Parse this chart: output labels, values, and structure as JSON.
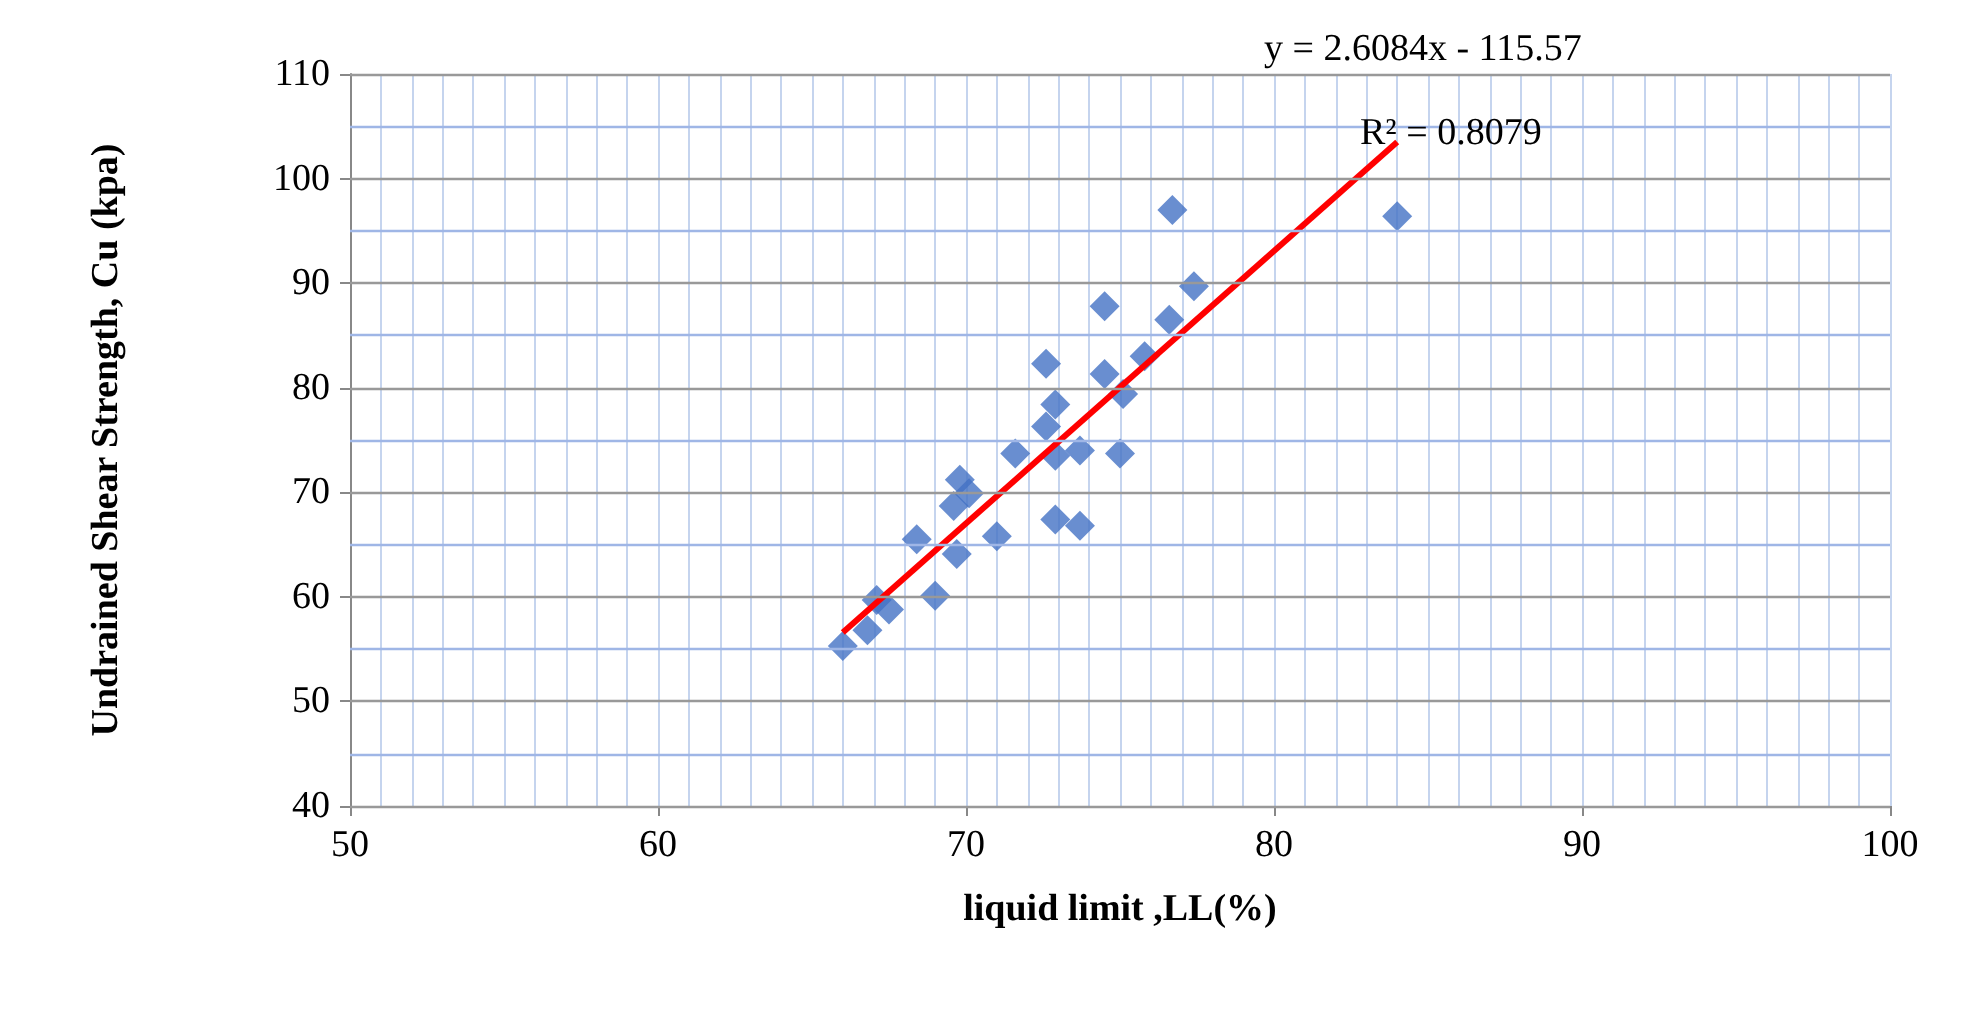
{
  "chart_data": {
    "type": "scatter",
    "xlabel": "liquid limit ,LL(%)",
    "ylabel": "Undrained Shear Strength, Cu (kpa)",
    "xlim": [
      50,
      100
    ],
    "xticks": [
      50,
      60,
      70,
      80,
      90,
      100
    ],
    "ylim": [
      40,
      110
    ],
    "yticks": [
      40,
      {
        "value": 45,
        "label": null
      },
      50,
      {
        "value": 55,
        "label": null
      },
      60,
      {
        "value": 65,
        "label": null
      },
      70,
      {
        "value": 75,
        "label": null
      },
      80,
      {
        "value": 85,
        "label": null
      },
      90,
      {
        "value": 95,
        "label": null
      },
      100,
      {
        "value": 105,
        "label": null
      },
      110
    ],
    "grid": true,
    "marker": "diamond",
    "annotations": [
      "y = 2.6084x - 115.57",
      "R² = 0.8079"
    ],
    "series": [
      {
        "color": "#4472c4",
        "x": [
          66.0,
          66.8,
          67.1,
          67.5,
          68.4,
          69.0,
          69.7,
          69.6,
          69.8,
          70.1,
          71.0,
          71.6,
          72.6,
          72.6,
          72.9,
          72.9,
          72.9,
          73.7,
          73.7,
          74.5,
          74.5,
          75.1,
          75.0,
          75.8,
          76.6,
          76.7,
          77.4,
          84.0
        ],
        "values": [
          55.3,
          56.8,
          59.7,
          58.8,
          65.5,
          60.1,
          64.1,
          68.7,
          71.2,
          69.9,
          65.8,
          73.7,
          82.3,
          76.3,
          67.4,
          78.4,
          73.5,
          74.0,
          66.8,
          87.8,
          81.3,
          79.4,
          73.7,
          83.0,
          86.5,
          97.0,
          89.7,
          96.4
        ]
      },
      {
        "type": "line",
        "color": "#ff0000",
        "marker": "none",
        "line_style": "solid",
        "x": [
          66.0,
          84.0
        ],
        "values": [
          56.6,
          103.5
        ]
      }
    ]
  }
}
